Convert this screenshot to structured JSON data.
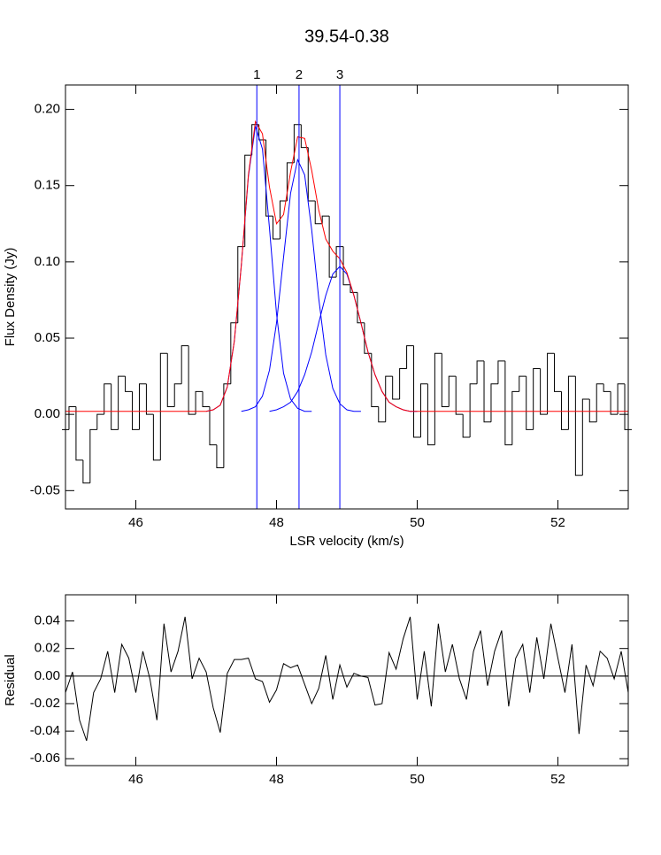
{
  "chart_data": [
    {
      "type": "line",
      "title": "39.54-0.38",
      "xlabel": "LSR velocity (km/s)",
      "ylabel": "Flux Density (Jy)",
      "xlim": [
        45.0,
        53.0
      ],
      "ylim": [
        -0.062,
        0.216
      ],
      "xticks": [
        46,
        48,
        50,
        52
      ],
      "yticks": [
        {
          "value": -0.05,
          "label": "-0.05"
        },
        {
          "value": 0,
          "label": "0.00"
        },
        {
          "value": 0.05,
          "label": "0.05"
        },
        {
          "value": 0.1,
          "label": "0.10"
        },
        {
          "value": 0.15,
          "label": "0.15"
        },
        {
          "value": 0.2,
          "label": "0.20"
        }
      ],
      "components": [
        {
          "label": "1",
          "x": 47.72
        },
        {
          "label": "2",
          "x": 48.32
        },
        {
          "label": "3",
          "x": 48.9
        }
      ],
      "component_color": "#0000ff",
      "series": [
        {
          "color": "#000000",
          "step": true,
          "x": [
            45.0,
            45.1,
            45.2,
            45.3,
            45.4,
            45.5,
            45.6,
            45.7,
            45.8,
            45.9,
            46.0,
            46.1,
            46.2,
            46.3,
            46.4,
            46.5,
            46.6,
            46.7,
            46.8,
            46.9,
            47.0,
            47.1,
            47.2,
            47.3,
            47.4,
            47.5,
            47.6,
            47.7,
            47.8,
            47.9,
            48.0,
            48.1,
            48.2,
            48.3,
            48.4,
            48.5,
            48.6,
            48.7,
            48.8,
            48.9,
            49.0,
            49.1,
            49.2,
            49.3,
            49.4,
            49.5,
            49.6,
            49.7,
            49.8,
            49.9,
            50.0,
            50.1,
            50.2,
            50.3,
            50.4,
            50.5,
            50.6,
            50.7,
            50.8,
            50.9,
            51.0,
            51.1,
            51.2,
            51.3,
            51.4,
            51.5,
            51.6,
            51.7,
            51.8,
            51.9,
            52.0,
            52.1,
            52.2,
            52.3,
            52.4,
            52.5,
            52.6,
            52.7,
            52.8,
            52.9,
            53.0
          ],
          "values": [
            -0.01,
            0.005,
            -0.03,
            -0.045,
            -0.01,
            0.0,
            0.02,
            -0.01,
            0.025,
            0.015,
            -0.01,
            0.02,
            0.0,
            -0.03,
            0.04,
            0.005,
            0.02,
            0.045,
            0.0,
            0.015,
            0.005,
            -0.02,
            -0.035,
            0.02,
            0.06,
            0.11,
            0.17,
            0.19,
            0.18,
            0.13,
            0.115,
            0.14,
            0.165,
            0.19,
            0.175,
            0.14,
            0.125,
            0.13,
            0.09,
            0.11,
            0.085,
            0.08,
            0.06,
            0.04,
            0.005,
            -0.005,
            0.025,
            0.01,
            0.03,
            0.045,
            -0.015,
            0.02,
            -0.02,
            0.04,
            0.005,
            0.025,
            0.0,
            -0.015,
            0.02,
            0.035,
            -0.005,
            0.02,
            0.035,
            -0.02,
            0.015,
            0.025,
            -0.01,
            0.03,
            0.0,
            0.04,
            0.015,
            -0.01,
            0.025,
            -0.04,
            0.01,
            -0.005,
            0.02,
            0.015,
            0.0,
            0.02,
            -0.01
          ]
        },
        {
          "color": "#0000ff",
          "x": [
            47.0,
            47.1,
            47.2,
            47.3,
            47.4,
            47.5,
            47.6,
            47.7,
            47.8,
            47.9,
            48.0,
            48.1,
            48.2,
            48.3,
            48.4,
            48.5
          ],
          "values": [
            0.002,
            0.003,
            0.006,
            0.018,
            0.048,
            0.098,
            0.156,
            0.189,
            0.174,
            0.122,
            0.066,
            0.027,
            0.01,
            0.004,
            0.002,
            0.002
          ]
        },
        {
          "color": "#0000ff",
          "x": [
            47.5,
            47.6,
            47.7,
            47.8,
            47.9,
            48.0,
            48.1,
            48.2,
            48.3,
            48.4,
            48.5,
            48.6,
            48.7,
            48.8,
            48.9,
            49.0,
            49.1,
            49.2
          ],
          "values": [
            0.002,
            0.003,
            0.005,
            0.012,
            0.029,
            0.06,
            0.103,
            0.145,
            0.167,
            0.157,
            0.121,
            0.076,
            0.039,
            0.017,
            0.007,
            0.003,
            0.002,
            0.002
          ]
        },
        {
          "color": "#0000ff",
          "x": [
            47.9,
            48.0,
            48.1,
            48.2,
            48.3,
            48.4,
            48.5,
            48.6,
            48.7,
            48.8,
            48.9,
            49.0,
            49.1,
            49.2,
            49.3,
            49.4,
            49.5,
            49.6,
            49.7,
            49.8,
            49.9,
            50.0
          ],
          "values": [
            0.002,
            0.003,
            0.005,
            0.008,
            0.015,
            0.026,
            0.041,
            0.06,
            0.078,
            0.092,
            0.097,
            0.092,
            0.078,
            0.06,
            0.041,
            0.026,
            0.015,
            0.008,
            0.005,
            0.003,
            0.002,
            0.002
          ]
        },
        {
          "color": "#ff0000",
          "x": [
            45.0,
            47.0,
            47.1,
            47.2,
            47.3,
            47.4,
            47.5,
            47.6,
            47.7,
            47.8,
            47.9,
            48.0,
            48.1,
            48.2,
            48.3,
            48.4,
            48.5,
            48.6,
            48.7,
            48.8,
            48.9,
            49.0,
            49.1,
            49.2,
            49.3,
            49.4,
            49.5,
            49.6,
            49.7,
            49.8,
            49.9,
            50.0,
            53.0
          ],
          "values": [
            0.002,
            0.002,
            0.003,
            0.006,
            0.018,
            0.048,
            0.098,
            0.157,
            0.192,
            0.184,
            0.149,
            0.125,
            0.131,
            0.159,
            0.182,
            0.181,
            0.16,
            0.134,
            0.115,
            0.107,
            0.102,
            0.093,
            0.078,
            0.06,
            0.041,
            0.026,
            0.015,
            0.008,
            0.005,
            0.003,
            0.002,
            0.002,
            0.002
          ]
        }
      ]
    },
    {
      "type": "line",
      "ylabel": "Residual",
      "xlim": [
        45.0,
        53.0
      ],
      "ylim": [
        -0.065,
        0.059
      ],
      "xticks": [
        46,
        48,
        50,
        52
      ],
      "yticks": [
        {
          "value": -0.06,
          "label": "-0.06"
        },
        {
          "value": -0.04,
          "label": "-0.04"
        },
        {
          "value": -0.02,
          "label": "-0.02"
        },
        {
          "value": 0,
          "label": "0.00"
        },
        {
          "value": 0.02,
          "label": "0.02"
        },
        {
          "value": 0.04,
          "label": "0.04"
        }
      ],
      "hline": 0,
      "series": [
        {
          "color": "#000000",
          "x": [
            45.0,
            45.1,
            45.2,
            45.3,
            45.4,
            45.5,
            45.6,
            45.7,
            45.8,
            45.9,
            46.0,
            46.1,
            46.2,
            46.3,
            46.4,
            46.5,
            46.6,
            46.7,
            46.8,
            46.9,
            47.0,
            47.1,
            47.2,
            47.3,
            47.4,
            47.5,
            47.6,
            47.7,
            47.8,
            47.9,
            48.0,
            48.1,
            48.2,
            48.3,
            48.4,
            48.5,
            48.6,
            48.7,
            48.8,
            48.9,
            49.0,
            49.1,
            49.2,
            49.3,
            49.4,
            49.5,
            49.6,
            49.7,
            49.8,
            49.9,
            50.0,
            50.1,
            50.2,
            50.3,
            50.4,
            50.5,
            50.6,
            50.7,
            50.8,
            50.9,
            51.0,
            51.1,
            51.2,
            51.3,
            51.4,
            51.5,
            51.6,
            51.7,
            51.8,
            51.9,
            52.0,
            52.1,
            52.2,
            52.3,
            52.4,
            52.5,
            52.6,
            52.7,
            52.8,
            52.9,
            53.0
          ],
          "values": [
            -0.012,
            0.003,
            -0.032,
            -0.047,
            -0.012,
            -0.002,
            0.018,
            -0.012,
            0.023,
            0.013,
            -0.012,
            0.018,
            -0.002,
            -0.032,
            0.038,
            0.003,
            0.018,
            0.043,
            -0.002,
            0.013,
            0.003,
            -0.023,
            -0.041,
            0.002,
            0.012,
            0.012,
            0.013,
            -0.002,
            -0.004,
            -0.019,
            -0.01,
            0.009,
            0.006,
            0.008,
            -0.006,
            -0.02,
            -0.009,
            0.015,
            -0.017,
            0.008,
            -0.008,
            0.002,
            0.0,
            -0.001,
            -0.021,
            -0.02,
            0.017,
            0.005,
            0.027,
            0.043,
            -0.017,
            0.018,
            -0.022,
            0.038,
            0.003,
            0.023,
            -0.002,
            -0.017,
            0.018,
            0.033,
            -0.007,
            0.018,
            0.033,
            -0.022,
            0.013,
            0.023,
            -0.012,
            0.028,
            -0.002,
            0.038,
            0.013,
            -0.012,
            0.023,
            -0.042,
            0.008,
            -0.007,
            0.018,
            0.013,
            -0.002,
            0.018,
            -0.012
          ]
        }
      ]
    }
  ]
}
